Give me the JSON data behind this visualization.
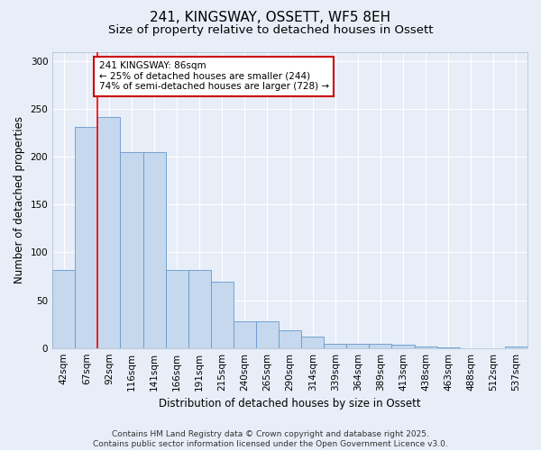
{
  "title": "241, KINGSWAY, OSSETT, WF5 8EH",
  "subtitle": "Size of property relative to detached houses in Ossett",
  "xlabel": "Distribution of detached houses by size in Ossett",
  "ylabel": "Number of detached properties",
  "categories": [
    "42sqm",
    "67sqm",
    "92sqm",
    "116sqm",
    "141sqm",
    "166sqm",
    "191sqm",
    "215sqm",
    "240sqm",
    "265sqm",
    "290sqm",
    "314sqm",
    "339sqm",
    "364sqm",
    "389sqm",
    "413sqm",
    "438sqm",
    "463sqm",
    "488sqm",
    "512sqm",
    "537sqm"
  ],
  "values": [
    82,
    231,
    242,
    205,
    205,
    82,
    82,
    69,
    28,
    28,
    19,
    12,
    4,
    4,
    4,
    3,
    2,
    1,
    0,
    0,
    2
  ],
  "bar_color": "#c5d8ed",
  "bar_edge_color": "#6699cc",
  "background_color": "#e8eef8",
  "grid_color": "#ffffff",
  "red_line_x": 1.5,
  "annotation_line1": "241 KINGSWAY: 86sqm",
  "annotation_line2": "← 25% of detached houses are smaller (244)",
  "annotation_line3": "74% of semi-detached houses are larger (728) →",
  "annotation_box_color": "#ffffff",
  "annotation_box_edge": "#cc0000",
  "ylim": [
    0,
    310
  ],
  "yticks": [
    0,
    50,
    100,
    150,
    200,
    250,
    300
  ],
  "footer_line1": "Contains HM Land Registry data © Crown copyright and database right 2025.",
  "footer_line2": "Contains public sector information licensed under the Open Government Licence v3.0.",
  "title_fontsize": 11,
  "subtitle_fontsize": 9.5,
  "axis_label_fontsize": 8.5,
  "tick_fontsize": 7.5,
  "annotation_fontsize": 7.5,
  "footer_fontsize": 6.5
}
